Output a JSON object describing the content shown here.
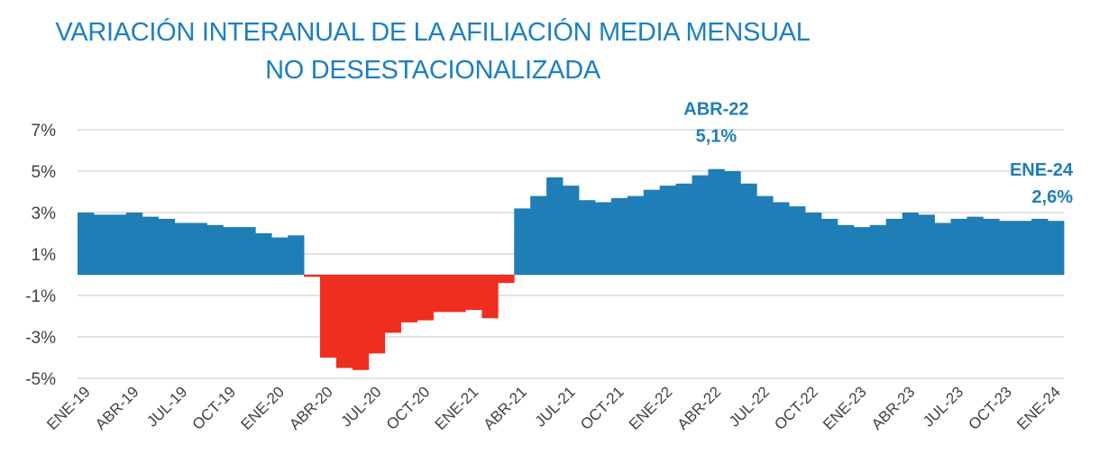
{
  "chart_data": {
    "type": "bar",
    "title": "VARIACIÓN INTERANUAL DE LA AFILIACIÓN MEDIA MENSUAL",
    "subtitle": "NO DESESTACIONALIZADA",
    "xlabel": "",
    "ylabel": "",
    "ylim": [
      -5,
      7
    ],
    "yticks": [
      "7%",
      "5%",
      "3%",
      "1%",
      "-1%",
      "-3%",
      "-5%"
    ],
    "ytick_values": [
      7,
      5,
      3,
      1,
      -1,
      -3,
      -5
    ],
    "grid": true,
    "categories": [
      "ENE-19",
      "FEB-19",
      "MAR-19",
      "ABR-19",
      "MAY-19",
      "JUN-19",
      "JUL-19",
      "AGO-19",
      "SEP-19",
      "OCT-19",
      "NOV-19",
      "DIC-19",
      "ENE-20",
      "FEB-20",
      "MAR-20",
      "ABR-20",
      "MAY-20",
      "JUN-20",
      "JUL-20",
      "AGO-20",
      "SEP-20",
      "OCT-20",
      "NOV-20",
      "DIC-20",
      "ENE-21",
      "FEB-21",
      "MAR-21",
      "ABR-21",
      "MAY-21",
      "JUN-21",
      "JUL-21",
      "AGO-21",
      "SEP-21",
      "OCT-21",
      "NOV-21",
      "DIC-21",
      "ENE-22",
      "FEB-22",
      "MAR-22",
      "ABR-22",
      "MAY-22",
      "JUN-22",
      "JUL-22",
      "AGO-22",
      "SEP-22",
      "OCT-22",
      "NOV-22",
      "DIC-22",
      "ENE-23",
      "FEB-23",
      "MAR-23",
      "ABR-23",
      "MAY-23",
      "JUN-23",
      "JUL-23",
      "AGO-23",
      "SEP-23",
      "OCT-23",
      "NOV-23",
      "DIC-23",
      "ENE-24"
    ],
    "xtick_labels": [
      "ENE-19",
      "ABR-19",
      "JUL-19",
      "OCT-19",
      "ENE-20",
      "ABR-20",
      "JUL-20",
      "OCT-20",
      "ENE-21",
      "ABR-21",
      "JUL-21",
      "OCT-21",
      "ENE-22",
      "ABR-22",
      "JUL-22",
      "OCT-22",
      "ENE-23",
      "ABR-23",
      "JUL-23",
      "OCT-23",
      "ENE-24"
    ],
    "values": [
      3.0,
      2.9,
      2.9,
      3.0,
      2.8,
      2.7,
      2.5,
      2.5,
      2.4,
      2.3,
      2.3,
      2.0,
      1.8,
      1.9,
      -0.1,
      -4.0,
      -4.5,
      -4.6,
      -3.8,
      -2.8,
      -2.3,
      -2.2,
      -1.8,
      -1.8,
      -1.7,
      -2.1,
      -0.4,
      3.2,
      3.8,
      4.7,
      4.3,
      3.6,
      3.5,
      3.7,
      3.8,
      4.1,
      4.3,
      4.4,
      4.8,
      5.1,
      5.0,
      4.4,
      3.8,
      3.5,
      3.3,
      3.0,
      2.7,
      2.4,
      2.3,
      2.4,
      2.7,
      3.0,
      2.9,
      2.5,
      2.7,
      2.8,
      2.7,
      2.6,
      2.6,
      2.7,
      2.6
    ],
    "colors": {
      "positive": "#1f7eb6",
      "negative": "#ee2e1e",
      "title": "#1b7fc4",
      "annotation": "#1f7eb6",
      "grid": "#d9d9d9"
    },
    "annotations": [
      {
        "category": "ABR-22",
        "label": "ABR-22",
        "value_label": "5,1%"
      },
      {
        "category": "ENE-24",
        "label": "ENE-24",
        "value_label": "2,6%"
      }
    ]
  }
}
